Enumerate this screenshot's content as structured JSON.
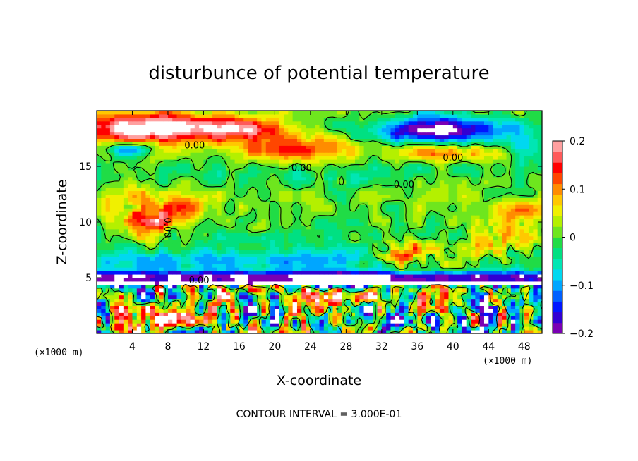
{
  "chart_data": {
    "type": "heatmap",
    "title": "disturbunce of potential temperature",
    "xlabel": "X-coordinate",
    "ylabel": "Z-coordinate",
    "x_unit_label": "(×1000 m)",
    "x_unit_label_right": "(×1000 m)",
    "xlim": [
      0,
      50
    ],
    "ylim": [
      0,
      20
    ],
    "x_ticks": [
      4,
      8,
      12,
      16,
      20,
      24,
      28,
      32,
      36,
      40,
      44,
      48
    ],
    "y_ticks": [
      5,
      10,
      15
    ],
    "colorbar": {
      "range": [
        -0.2,
        0.2
      ],
      "ticks": [
        0.2,
        0.1,
        0,
        -0.1,
        -0.2
      ],
      "tick_labels": [
        "0.2",
        "0.1",
        "0",
        "−0.1",
        "−0.2"
      ],
      "colors": [
        "#7a00b4",
        "#3200d2",
        "#0016ff",
        "#0060ff",
        "#00a6ff",
        "#00d8f0",
        "#00e6b4",
        "#00e082",
        "#20dc46",
        "#6ee61e",
        "#b4f000",
        "#f0f000",
        "#ffc800",
        "#ff8c00",
        "#ff4600",
        "#ff0000",
        "#ff5a5a",
        "#ffa0a0"
      ]
    },
    "contour_labels": [
      "0.00",
      "0.00",
      "0.00",
      "0.00",
      "0.00",
      "0.00"
    ],
    "note": "CONTOUR INTERVAL = 3.000E-01",
    "grid": false
  }
}
